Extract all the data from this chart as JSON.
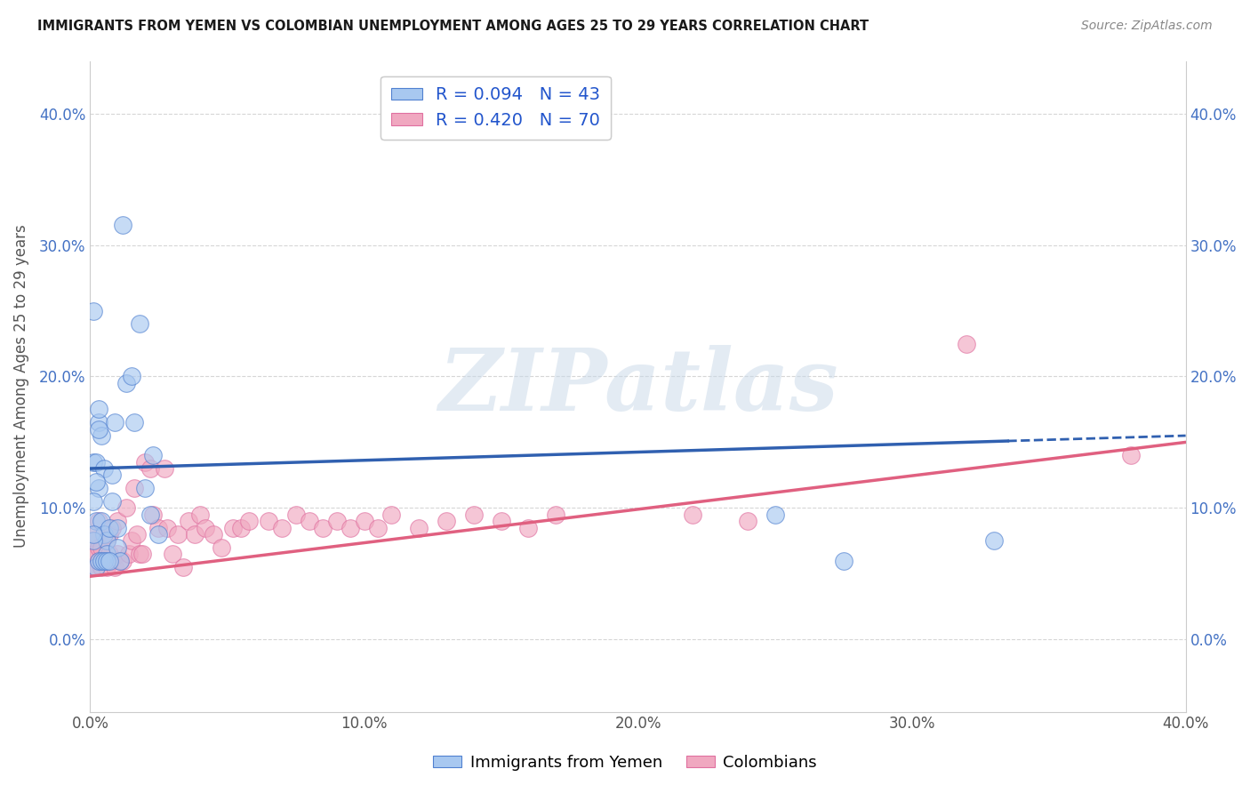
{
  "title": "IMMIGRANTS FROM YEMEN VS COLOMBIAN UNEMPLOYMENT AMONG AGES 25 TO 29 YEARS CORRELATION CHART",
  "source": "Source: ZipAtlas.com",
  "ylabel": "Unemployment Among Ages 25 to 29 years",
  "x_tick_labels": [
    "0.0%",
    "10.0%",
    "20.0%",
    "30.0%",
    "40.0%"
  ],
  "y_tick_labels": [
    "0.0%",
    "10.0%",
    "20.0%",
    "30.0%",
    "40.0%"
  ],
  "xlim": [
    0.0,
    0.4
  ],
  "ylim": [
    -0.055,
    0.44
  ],
  "y_ticks": [
    0.0,
    0.1,
    0.2,
    0.3,
    0.4
  ],
  "x_ticks": [
    0.0,
    0.1,
    0.2,
    0.3,
    0.4
  ],
  "legend_r1": "R = 0.094   N = 43",
  "legend_r2": "R = 0.420   N = 70",
  "legend_label1": "Immigrants from Yemen",
  "legend_label2": "Colombians",
  "blue_scatter_x": [
    0.001,
    0.002,
    0.002,
    0.003,
    0.003,
    0.004,
    0.004,
    0.005,
    0.005,
    0.006,
    0.006,
    0.007,
    0.008,
    0.008,
    0.009,
    0.01,
    0.01,
    0.011,
    0.012,
    0.013,
    0.015,
    0.016,
    0.018,
    0.02,
    0.022,
    0.023,
    0.025,
    0.001,
    0.002,
    0.003,
    0.004,
    0.005,
    0.006,
    0.007,
    0.001,
    0.001,
    0.002,
    0.003,
    0.003,
    0.001,
    0.25,
    0.275,
    0.33
  ],
  "blue_scatter_y": [
    0.135,
    0.135,
    0.09,
    0.165,
    0.115,
    0.155,
    0.09,
    0.13,
    0.08,
    0.075,
    0.065,
    0.085,
    0.125,
    0.105,
    0.165,
    0.085,
    0.07,
    0.06,
    0.315,
    0.195,
    0.2,
    0.165,
    0.24,
    0.115,
    0.095,
    0.14,
    0.08,
    0.075,
    0.055,
    0.06,
    0.06,
    0.06,
    0.06,
    0.06,
    0.25,
    0.105,
    0.12,
    0.175,
    0.16,
    0.08,
    0.095,
    0.06,
    0.075
  ],
  "pink_scatter_x": [
    0.001,
    0.001,
    0.001,
    0.002,
    0.002,
    0.002,
    0.003,
    0.003,
    0.003,
    0.004,
    0.004,
    0.004,
    0.005,
    0.005,
    0.006,
    0.006,
    0.007,
    0.007,
    0.008,
    0.008,
    0.009,
    0.01,
    0.01,
    0.011,
    0.012,
    0.013,
    0.014,
    0.015,
    0.016,
    0.017,
    0.018,
    0.019,
    0.02,
    0.022,
    0.023,
    0.025,
    0.027,
    0.028,
    0.03,
    0.032,
    0.034,
    0.036,
    0.038,
    0.04,
    0.042,
    0.045,
    0.048,
    0.052,
    0.055,
    0.058,
    0.065,
    0.07,
    0.075,
    0.08,
    0.085,
    0.09,
    0.095,
    0.1,
    0.105,
    0.11,
    0.12,
    0.13,
    0.14,
    0.15,
    0.16,
    0.17,
    0.22,
    0.24,
    0.32,
    0.38
  ],
  "pink_scatter_y": [
    0.075,
    0.065,
    0.055,
    0.08,
    0.065,
    0.055,
    0.09,
    0.07,
    0.06,
    0.07,
    0.06,
    0.055,
    0.08,
    0.06,
    0.075,
    0.055,
    0.08,
    0.065,
    0.085,
    0.06,
    0.055,
    0.09,
    0.065,
    0.06,
    0.06,
    0.1,
    0.065,
    0.075,
    0.115,
    0.08,
    0.065,
    0.065,
    0.135,
    0.13,
    0.095,
    0.085,
    0.13,
    0.085,
    0.065,
    0.08,
    0.055,
    0.09,
    0.08,
    0.095,
    0.085,
    0.08,
    0.07,
    0.085,
    0.085,
    0.09,
    0.09,
    0.085,
    0.095,
    0.09,
    0.085,
    0.09,
    0.085,
    0.09,
    0.085,
    0.095,
    0.085,
    0.09,
    0.095,
    0.09,
    0.085,
    0.095,
    0.095,
    0.09,
    0.225,
    0.14
  ],
  "blue_line_x0": 0.0,
  "blue_line_x_solid_end": 0.335,
  "blue_line_x_end": 0.4,
  "blue_line_y0": 0.13,
  "blue_line_y_end": 0.155,
  "pink_line_y0": 0.048,
  "pink_line_y_end": 0.15,
  "blue_line_color": "#3060b0",
  "pink_line_color": "#e06080",
  "blue_scatter_color": "#a8c8f0",
  "pink_scatter_color": "#f0a8c0",
  "blue_edge_color": "#5080d0",
  "pink_edge_color": "#e070a0",
  "watermark_text": "ZIPatlas",
  "watermark_color": "#c8d8e8",
  "background_color": "#ffffff",
  "grid_color": "#cccccc"
}
